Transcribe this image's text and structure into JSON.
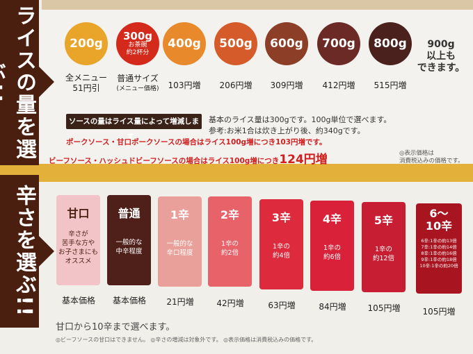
{
  "banner_top": "ライスの量を選ぶ!!",
  "banner_bottom": "辛さを選ぶ!!",
  "rice_options": [
    {
      "label": "200g",
      "caption": "全メニュー\n51円引",
      "color": "#e9a52a"
    },
    {
      "label": "300g",
      "sub": "お茶碗\n約2杯分",
      "caption": "普通サイズ",
      "caption_sub": "(メニュー価格)",
      "color": "#d42a1c"
    },
    {
      "label": "400g",
      "caption": "103円増",
      "color": "#e88a2b"
    },
    {
      "label": "500g",
      "caption": "206円増",
      "color": "#d65b2a"
    },
    {
      "label": "600g",
      "caption": "309円増",
      "color": "#8c3e27"
    },
    {
      "label": "700g",
      "caption": "412円増",
      "color": "#6b2a26"
    },
    {
      "label": "800g",
      "caption": "515円増",
      "color": "#4a211c"
    }
  ],
  "rice_extra": "900g\n以上も\nできます。",
  "notes": {
    "pill": "ソースの量はライス量によって増減します。",
    "base": "基本のライス量は300gです。100g単位で選べます。",
    "reference": "参考:お米1合は炊き上がり後、約340gです。",
    "pork": "ポークソース・甘口ポークソースの場合はライス100g増につき103円増です。",
    "beef_prefix": "ビーフソース・ハッシュドビーフソースの場合はライス100g増につき",
    "beef_amount": "124円増",
    "tax": "◎表示価格は\n消費税込みの価格です。"
  },
  "spice_options": [
    {
      "title": "甘口",
      "desc": "辛さが\n苦手な方や\nお子さまにも\nオススメ",
      "caption": "基本価格",
      "color": "#f2c4c8"
    },
    {
      "title": "普通",
      "desc": "一般的な\n中辛程度",
      "caption": "基本価格",
      "color": "#4e2019"
    },
    {
      "title": "1辛",
      "desc": "一般的な\n辛口程度",
      "caption": "21円増",
      "color": "#e9a09a"
    },
    {
      "title": "2辛",
      "desc": "1辛の\n約2倍",
      "caption": "42円増",
      "color": "#e8626a"
    },
    {
      "title": "3辛",
      "desc": "1辛の\n約4倍",
      "caption": "63円増",
      "color": "#dd2a3c"
    },
    {
      "title": "4辛",
      "desc": "1辛の\n約6倍",
      "caption": "84円増",
      "color": "#d9223a"
    },
    {
      "title": "5辛",
      "desc": "1辛の\n約12倍",
      "caption": "105円増",
      "color": "#c81e33"
    },
    {
      "title": "6〜\n10辛",
      "desc": "6辛:1辛の約13倍\n7辛:1辛の約14倍\n8辛:1辛の約16倍\n9辛:1辛の約18倍\n10辛:1辛の約20倍",
      "caption": "105円増",
      "color": "#a8141f"
    }
  ],
  "footer": "甘口から10辛まで選べます。",
  "footnote": "◎ビーフソースの甘口はできません。 ◎辛さの増減は対象外です。 ◎表示価格は消費税込みの価格です。"
}
